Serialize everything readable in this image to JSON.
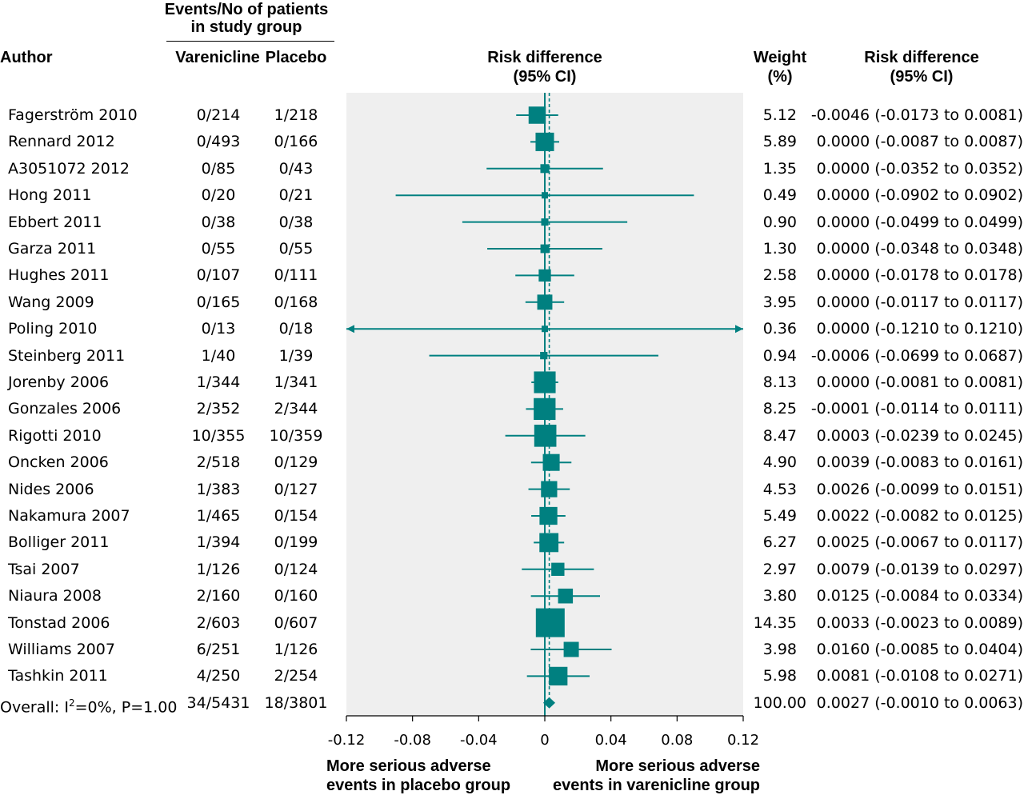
{
  "header": {
    "events_group": "Events/No of patients in study group",
    "events_line1": "Events/No of patients",
    "events_line2": "in study group",
    "author": "Author",
    "varenicline": "Varenicline",
    "placebo": "Placebo",
    "risk_diff_line1": "Risk difference",
    "risk_diff_line2": "(95% CI)",
    "weight_line1": "Weight",
    "weight_line2": "(%)",
    "rd_col_line1": "Risk difference",
    "rd_col_line2": "(95% CI)"
  },
  "footer": {
    "left_line1": "More serious adverse",
    "left_line2": "events in placebo group",
    "right_line1": "More serious adverse",
    "right_line2": "events in varenicline group"
  },
  "colors": {
    "marker": "#008080",
    "panel": "#efefef",
    "text": "#000000"
  },
  "chart_data": {
    "type": "forest",
    "xlim": [
      -0.12,
      0.12
    ],
    "xticks": [
      -0.12,
      -0.08,
      -0.04,
      0,
      0.04,
      0.08,
      0.12
    ],
    "xtick_labels": [
      "-0.12",
      "-0.08",
      "-0.04",
      "0",
      "0.04",
      "0.08",
      "0.12"
    ],
    "reference_line": 0,
    "pooled_line": 0.0027,
    "studies": [
      {
        "author": "Fagerström 2010",
        "varenicline": "0/214",
        "placebo": "1/218",
        "weight": "5.12",
        "ci_text": "-0.0046 (-0.0173 to 0.0081)",
        "rd": -0.0046,
        "lo": -0.0173,
        "hi": 0.0081,
        "w": 5.12
      },
      {
        "author": "Rennard 2012",
        "varenicline": "0/493",
        "placebo": "0/166",
        "weight": "5.89",
        "ci_text": "0.0000 (-0.0087 to 0.0087)",
        "rd": 0.0,
        "lo": -0.0087,
        "hi": 0.0087,
        "w": 5.89
      },
      {
        "author": "A3051072 2012",
        "varenicline": "0/85",
        "placebo": "0/43",
        "weight": "1.35",
        "ci_text": "0.0000 (-0.0352 to 0.0352)",
        "rd": 0.0,
        "lo": -0.0352,
        "hi": 0.0352,
        "w": 1.35
      },
      {
        "author": "Hong 2011",
        "varenicline": "0/20",
        "placebo": "0/21",
        "weight": "0.49",
        "ci_text": "0.0000 (-0.0902 to 0.0902)",
        "rd": 0.0,
        "lo": -0.0902,
        "hi": 0.0902,
        "w": 0.49
      },
      {
        "author": "Ebbert 2011",
        "varenicline": "0/38",
        "placebo": "0/38",
        "weight": "0.90",
        "ci_text": "0.0000 (-0.0499 to 0.0499)",
        "rd": 0.0,
        "lo": -0.0499,
        "hi": 0.0499,
        "w": 0.9
      },
      {
        "author": "Garza 2011",
        "varenicline": "0/55",
        "placebo": "0/55",
        "weight": "1.30",
        "ci_text": "0.0000 (-0.0348 to 0.0348)",
        "rd": 0.0,
        "lo": -0.0348,
        "hi": 0.0348,
        "w": 1.3
      },
      {
        "author": "Hughes 2011",
        "varenicline": "0/107",
        "placebo": "0/111",
        "weight": "2.58",
        "ci_text": "0.0000 (-0.0178 to 0.0178)",
        "rd": 0.0,
        "lo": -0.0178,
        "hi": 0.0178,
        "w": 2.58
      },
      {
        "author": "Wang 2009",
        "varenicline": "0/165",
        "placebo": "0/168",
        "weight": "3.95",
        "ci_text": "0.0000 (-0.0117 to 0.0117)",
        "rd": 0.0,
        "lo": -0.0117,
        "hi": 0.0117,
        "w": 3.95
      },
      {
        "author": "Poling 2010",
        "varenicline": "0/13",
        "placebo": "0/18",
        "weight": "0.36",
        "ci_text": "0.0000 (-0.1210 to 0.1210)",
        "rd": 0.0,
        "lo": -0.121,
        "hi": 0.121,
        "w": 0.36
      },
      {
        "author": "Steinberg 2011",
        "varenicline": "1/40",
        "placebo": "1/39",
        "weight": "0.94",
        "ci_text": "-0.0006 (-0.0699 to 0.0687)",
        "rd": -0.0006,
        "lo": -0.0699,
        "hi": 0.0687,
        "w": 0.94
      },
      {
        "author": "Jorenby 2006",
        "varenicline": "1/344",
        "placebo": "1/341",
        "weight": "8.13",
        "ci_text": "0.0000 (-0.0081 to 0.0081)",
        "rd": 0.0,
        "lo": -0.0081,
        "hi": 0.0081,
        "w": 8.13
      },
      {
        "author": "Gonzales 2006",
        "varenicline": "2/352",
        "placebo": "2/344",
        "weight": "8.25",
        "ci_text": "-0.0001 (-0.0114 to 0.0111)",
        "rd": -0.0001,
        "lo": -0.0114,
        "hi": 0.0111,
        "w": 8.25
      },
      {
        "author": "Rigotti 2010",
        "varenicline": "10/355",
        "placebo": "10/359",
        "weight": "8.47",
        "ci_text": "0.0003 (-0.0239 to 0.0245)",
        "rd": 0.0003,
        "lo": -0.0239,
        "hi": 0.0245,
        "w": 8.47
      },
      {
        "author": "Oncken 2006",
        "varenicline": "2/518",
        "placebo": "0/129",
        "weight": "4.90",
        "ci_text": "0.0039 (-0.0083 to 0.0161)",
        "rd": 0.0039,
        "lo": -0.0083,
        "hi": 0.0161,
        "w": 4.9
      },
      {
        "author": "Nides 2006",
        "varenicline": "1/383",
        "placebo": "0/127",
        "weight": "4.53",
        "ci_text": "0.0026 (-0.0099 to 0.0151)",
        "rd": 0.0026,
        "lo": -0.0099,
        "hi": 0.0151,
        "w": 4.53
      },
      {
        "author": "Nakamura 2007",
        "varenicline": "1/465",
        "placebo": "0/154",
        "weight": "5.49",
        "ci_text": "0.0022 (-0.0082 to 0.0125)",
        "rd": 0.0022,
        "lo": -0.0082,
        "hi": 0.0125,
        "w": 5.49
      },
      {
        "author": "Bolliger 2011",
        "varenicline": "1/394",
        "placebo": "0/199",
        "weight": "6.27",
        "ci_text": "0.0025 (-0.0067 to 0.0117)",
        "rd": 0.0025,
        "lo": -0.0067,
        "hi": 0.0117,
        "w": 6.27
      },
      {
        "author": "Tsai 2007",
        "varenicline": "1/126",
        "placebo": "0/124",
        "weight": "2.97",
        "ci_text": "0.0079 (-0.0139 to 0.0297)",
        "rd": 0.0079,
        "lo": -0.0139,
        "hi": 0.0297,
        "w": 2.97
      },
      {
        "author": "Niaura 2008",
        "varenicline": "2/160",
        "placebo": "0/160",
        "weight": "3.80",
        "ci_text": "0.0125 (-0.0084 to 0.0334)",
        "rd": 0.0125,
        "lo": -0.0084,
        "hi": 0.0334,
        "w": 3.8
      },
      {
        "author": "Tonstad 2006",
        "varenicline": "2/603",
        "placebo": "0/607",
        "weight": "14.35",
        "ci_text": "0.0033 (-0.0023 to 0.0089)",
        "rd": 0.0033,
        "lo": -0.0023,
        "hi": 0.0089,
        "w": 14.35
      },
      {
        "author": "Williams 2007",
        "varenicline": "6/251",
        "placebo": "1/126",
        "weight": "3.98",
        "ci_text": "0.0160 (-0.0085 to 0.0404)",
        "rd": 0.016,
        "lo": -0.0085,
        "hi": 0.0404,
        "w": 3.98
      },
      {
        "author": "Tashkin 2011",
        "varenicline": "4/250",
        "placebo": "2/254",
        "weight": "5.98",
        "ci_text": "0.0081 (-0.0108 to 0.0271)",
        "rd": 0.0081,
        "lo": -0.0108,
        "hi": 0.0271,
        "w": 5.98
      }
    ],
    "overall": {
      "label_prefix": "Overall: I",
      "label_sup": "2",
      "label_suffix": "=0%, P=1.00",
      "varenicline": "34/5431",
      "placebo": "18/3801",
      "weight": "100.00",
      "ci_text": "0.0027 (-0.0010 to 0.0063)",
      "rd": 0.0027,
      "lo": -0.001,
      "hi": 0.0063
    }
  }
}
